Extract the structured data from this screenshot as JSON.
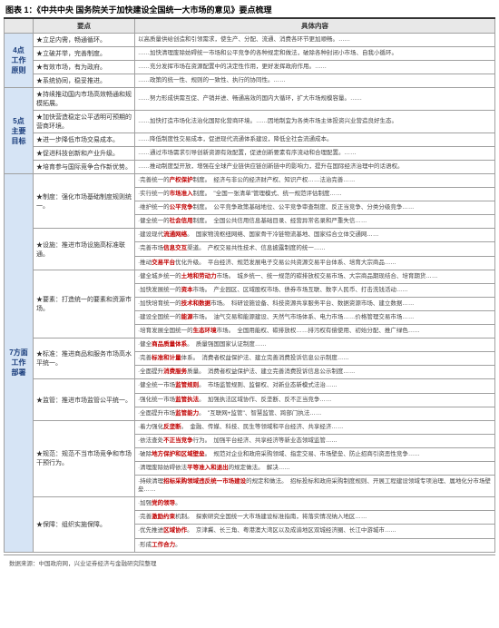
{
  "title": "图表 1：《中共中央 国务院关于加快建设全国统一大市场的意见》要点梳理",
  "headers": {
    "point": "要点",
    "detail": "具体内容"
  },
  "source": "数据来源：中国政府网，兴业证券经济与金融研究院整理",
  "sections": [
    {
      "cat": "4点\n工作\n原则",
      "rows": [
        {
          "point": "★立足内需，畅通循环。",
          "detail": "以高质量供给创造和引领需求，使生产、分配、流通、消费各环节更加顺畅。……"
        },
        {
          "point": "★立破并举，完善制度。",
          "detail": "……加快清理废除妨碍统一市场和公平竞争的各种规定和做法，破除各种封闭小市场、自我小循环。"
        },
        {
          "point": "★有效市场，有为政府。",
          "detail": "……充分发挥市场在资源配置中的决定性作用，更好发挥政府作用。……"
        },
        {
          "point": "★系统协同，稳妥推进。",
          "detail": "……政策的统一性、规则的一致性、执行的协同性。……"
        }
      ]
    },
    {
      "cat": "5点\n主要\n目标",
      "rows": [
        {
          "point": "★持续推动国内市场高效畅通和规模拓展。",
          "detail": "……努力形成供需互促、产销并进、畅通高效的国内大循环，扩大市场规模容量。……"
        },
        {
          "point": "★加快营造稳定公平透明可预期的营商环境。",
          "detail": "……加快打造市场化法治化国际化营商环境。……因地制宜为各类市场主体投资兴业营造良好生态。"
        },
        {
          "point": "★进一步降低市场交易成本。",
          "detail": "……降低制度性交易成本，促进现代流通体系建设，降低全社会流通成本。"
        },
        {
          "point": "★促进科技创新和产业升级。",
          "detail": "……通过市场需求引导创新资源有效配置，促进创新要素有序流动和合理配置。……"
        },
        {
          "point": "★培育参与国际竞争合作新优势。",
          "detail": "……推动制度型开放，增强在全球产业链供应链创新链中的影响力，提升在国际经济治理中的话语权。"
        }
      ]
    },
    {
      "cat": "7方面\n工作\n部署",
      "groups": [
        {
          "subhead": "★制度：强化市场基础制度规则统一。",
          "rows": [
            {
              "point": "·完善统一的<span class='red'>产权保护</span>制度。",
              "detail": "经济与非公的经济财产权、知识产权……法治完善……"
            },
            {
              "point": "·实行统一的<span class='red'>市场准入</span>制度。",
              "detail": "\"全国一张清单\"管理模式、统一规范评估制度……"
            },
            {
              "point": "·维护统一的<span class='red'>公平竞争</span>制度。",
              "detail": "公平竞争政策基础地位、公平竞争审查制度、反正当竞争、分类分级竞争……"
            },
            {
              "point": "·健全统一的<span class='red'>社会信用</span>制度。",
              "detail": "全国公共信用信息基础目录、经营异常名录和严重失信……"
            }
          ]
        },
        {
          "subhead": "★设施：推进市场设施高标准联通。",
          "rows": [
            {
              "point": "·建设现代<span class='red'>流通网络</span>。",
              "detail": "国家物流枢纽网络、国家骨干冷链物流基地、国家综合立体交通网……"
            },
            {
              "point": "·完善市场<span class='red'>信息交互</span>渠道。",
              "detail": "产权交易共性技术、信息披露制度的统一……"
            },
            {
              "point": "·推动<span class='red'>交易平台</span>优化升级。",
              "detail": "平台经济、规范发展电子交易公共资源交易平台体系、培育大宗商品……"
            }
          ]
        },
        {
          "subhead": "★要素：打造统一的要素和资源市场。",
          "rows": [
            {
              "point": "·健全城乡统一的<span class='red'>土地和劳动力</span>市场。",
              "detail": "城乡统一、统一规范的碳排放权交易市场、大宗商品期现结合、培育期货……"
            },
            {
              "point": "·加快发展统一的<span class='red'>资本</span>市场。",
              "detail": "产业园区、区域股权市场、债券市场互联、数字人民币、打击洗钱活动……"
            },
            {
              "point": "·加快培育统一的<span class='red'>技术和数据</span>市场。",
              "detail": "科研设施设备、科技资源共享服务平台、数据资源市场、建立数据……"
            },
            {
              "point": "·建设全国统一的<span class='red'>能源</span>市场。",
              "detail": "油气交易和能源建设、天然气市场体系、电力市场……价格管理交易市场……"
            },
            {
              "point": "·培育发展全国统一的<span class='red'>生态环境</span>市场。",
              "detail": "全国用能权、碳排放权……排污权有偿使用、初始分配、推广绿色……"
            }
          ]
        },
        {
          "subhead": "★标准：推进商品和服务市场高水平统一。",
          "rows": [
            {
              "point": "·健全<span class='red'>商品质量体系</span>。",
              "detail": "质量强国国家认证制度……"
            },
            {
              "point": "·完善<span class='red'>标准和计量</span>体系。",
              "detail": "消费者权益保护法、建立完善消费投诉信息公示制度……"
            },
            {
              "point": "·全面提升<span class='red'>消费服务</span>质量。",
              "detail": "消费者权益保护法、建立完善消费投诉信息公示制度……"
            }
          ]
        },
        {
          "subhead": "★监管：推进市场监管公平统一。",
          "rows": [
            {
              "point": "·健全统一市场<span class='red'>监管规则</span>。",
              "detail": "市场监管规则、监督权、对新业态新模式法治……"
            },
            {
              "point": "·强化统一市场<span class='red'>监管执法</span>。",
              "detail": "加强执法区域协作、反垄断、反不正当竞争……"
            },
            {
              "point": "·全面提升市场<span class='red'>监管能力</span>。",
              "detail": "\"互联网+监管\"、智慧监管、跨部门执法……"
            }
          ]
        },
        {
          "subhead": "★规范：规范不当市场竞争和市场干预行为。",
          "rows": [
            {
              "point": "·着力强化<span class='red'>反垄断</span>。",
              "detail": "金融、传媒、科技、民生等领域和平台经济、共享经济……"
            },
            {
              "point": "·依法查处<span class='red'>不正当竞争</span>行为。",
              "detail": "加强平台经济、共享经济等新业态领域监管……"
            },
            {
              "point": "·破除<span class='red'>地方保护和区域壁垒</span>。",
              "detail": "规范对企业和政府采购领域、指定交易、市场壁垒、防止招商引资恶性竞争……"
            },
            {
              "point": "·清理废除妨碍依法<span class='red'>平等准入和退出</span>的规定做法。",
              "detail": "解决……"
            },
            {
              "point": "·持续清理<span class='red'>招标采购领域违反统一市场建设</span>的规定和做法。",
              "detail": "招标投标和政府采购制度规则、开展工程建设领域专项治理、属地化分市场壁垒……"
            }
          ]
        },
        {
          "subhead": "★保障：组织实施保障。",
          "rows": [
            {
              "point": "·加强<span class='red'>党的领导</span>。",
              "detail": ""
            },
            {
              "point": "·完善<span class='red'>激励约束</span>机制。",
              "detail": "探索研究全国统一大市场建设标准指南，将落实情况纳入地区……"
            },
            {
              "point": "·优先推进<span class='red'>区域协作</span>。",
              "detail": "京津冀、长三角、粤港澳大湾区以及成渝地区双城经济圈、长江中游城市……"
            },
            {
              "point": "·形成<span class='red'>工作合力</span>。",
              "detail": ""
            }
          ]
        }
      ]
    }
  ]
}
